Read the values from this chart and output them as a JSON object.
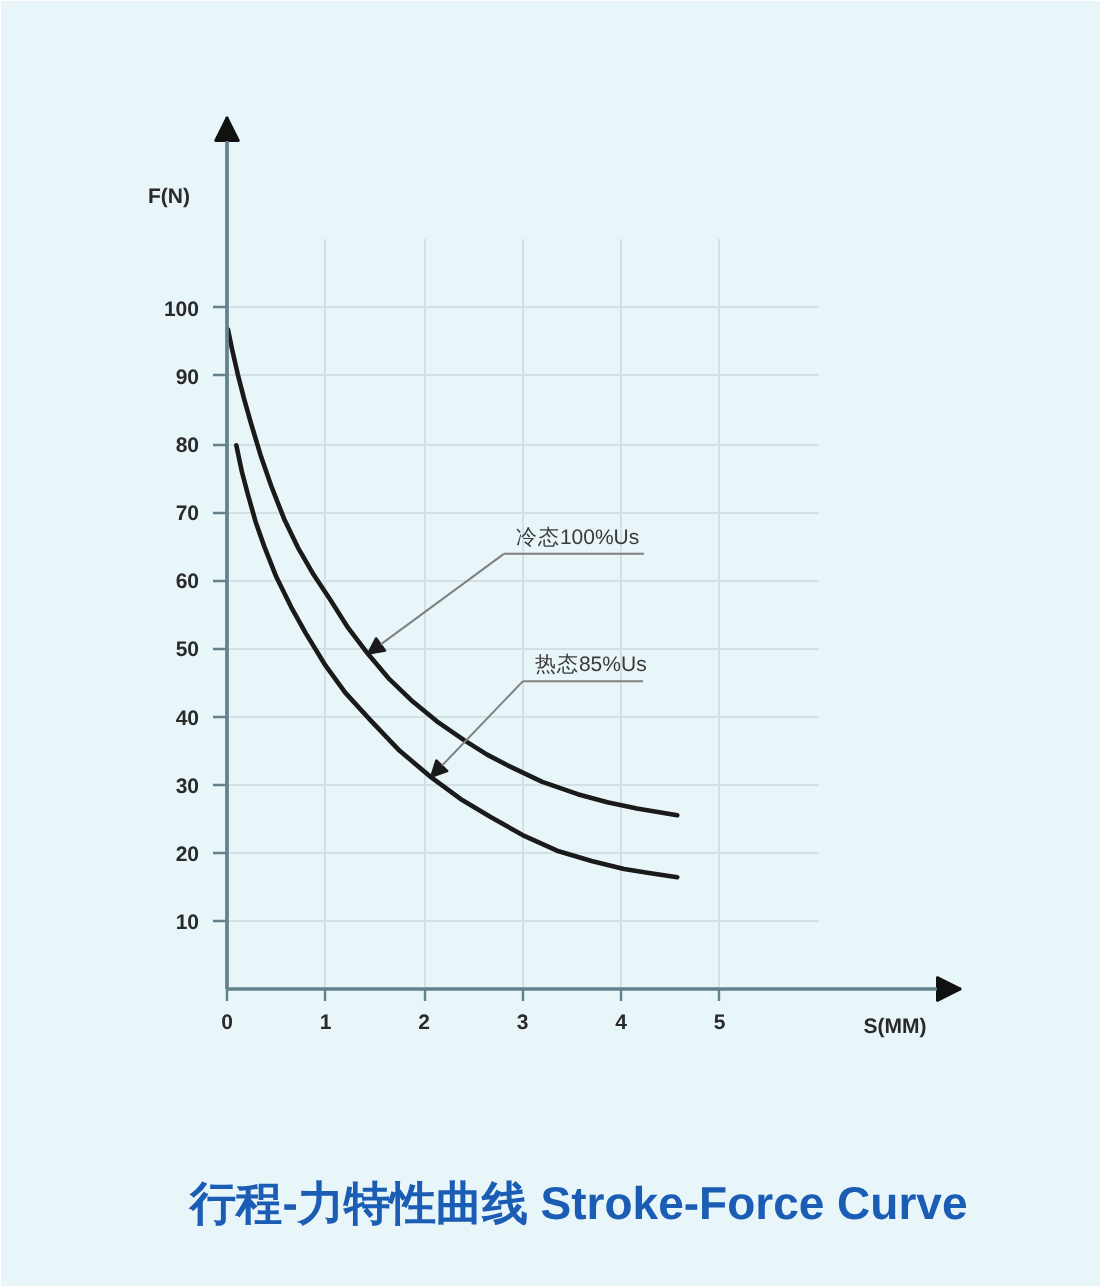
{
  "chart_data": {
    "type": "line",
    "title": "行程-力特性曲线 Stroke-Force Curve",
    "xlabel": "S(MM)",
    "ylabel": "F(N)",
    "xlim": [
      0,
      7.45
    ],
    "ylim": [
      0,
      128
    ],
    "xticks": [
      0,
      1,
      2,
      3,
      4,
      5
    ],
    "yticks": [
      10,
      20,
      30,
      40,
      50,
      60,
      70,
      80,
      90,
      100
    ],
    "grid": true,
    "series": [
      {
        "color": "#1a1a1a",
        "x": [
          0.01,
          0.05,
          0.11,
          0.17,
          0.24,
          0.34,
          0.45,
          0.58,
          0.72,
          0.88,
          1.05,
          1.23,
          1.43,
          1.64,
          1.87,
          2.13,
          2.41,
          2.64,
          2.88,
          3.2,
          3.56,
          3.86,
          4.16,
          4.57
        ],
        "values": [
          96.8,
          94.0,
          90.2,
          86.8,
          83.2,
          78.4,
          73.8,
          69.0,
          64.8,
          60.8,
          57.1,
          53.0,
          49.2,
          45.6,
          42.4,
          39.3,
          36.5,
          34.4,
          32.6,
          30.4,
          28.6,
          27.4,
          26.5,
          25.5
        ]
      },
      {
        "color": "#1a1a1a",
        "x": [
          0.095,
          0.15,
          0.21,
          0.29,
          0.38,
          0.5,
          0.65,
          0.8,
          0.99,
          1.2,
          1.46,
          1.75,
          2.07,
          2.37,
          2.68,
          3.0,
          3.35,
          3.7,
          4.03,
          4.3,
          4.57
        ],
        "values": [
          79.8,
          76.0,
          72.7,
          68.6,
          64.9,
          60.5,
          56.1,
          52.2,
          47.7,
          43.5,
          39.4,
          35.0,
          31.1,
          27.9,
          25.2,
          22.6,
          20.3,
          18.8,
          17.6,
          17.0,
          16.4
        ]
      }
    ],
    "annotations": [
      {
        "text": "冷态100%Us",
        "x": 1.43,
        "y": 49.2
      },
      {
        "text": "热态85%Us",
        "x": 2.07,
        "y": 31.1
      }
    ]
  }
}
